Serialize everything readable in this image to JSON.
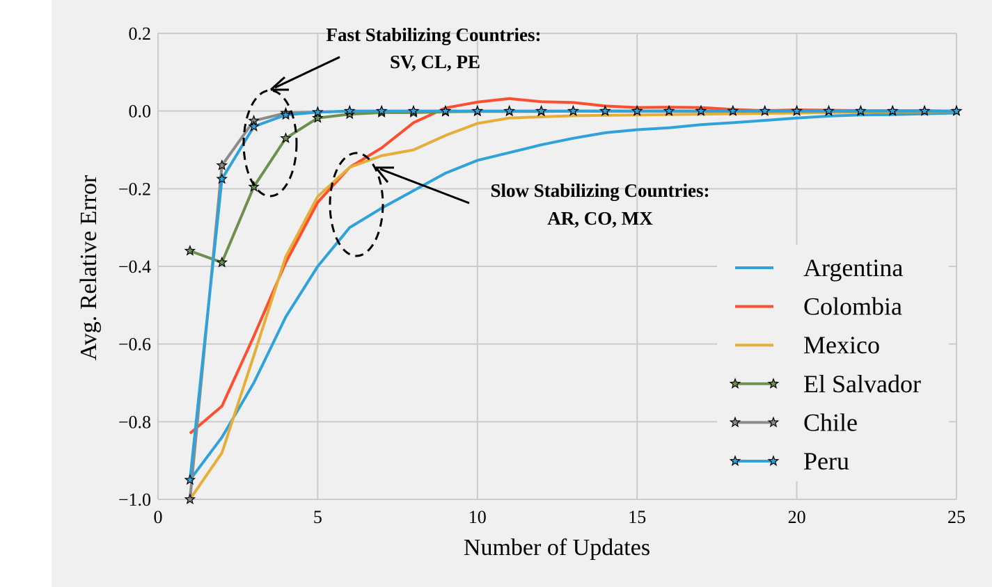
{
  "chart_data": {
    "type": "line",
    "xlabel": "Number of Updates",
    "ylabel": "Avg. Relative Error",
    "xlim": [
      0,
      25
    ],
    "ylim": [
      -1.0,
      0.2
    ],
    "xticks": [
      0,
      5,
      10,
      15,
      20,
      25
    ],
    "xtick_labels": [
      "0",
      "5",
      "10",
      "15",
      "20",
      "25"
    ],
    "yticks": [
      0.2,
      0.0,
      -0.2,
      -0.4,
      -0.6,
      -0.8,
      -1.0
    ],
    "ytick_labels": [
      "0.2",
      "0.0",
      "−0.2",
      "−0.4",
      "−0.6",
      "−0.8",
      "−1.0"
    ],
    "grid": true,
    "legend_position": "lower-right",
    "annotations": [
      {
        "line1": "Fast Stabilizing Countries:",
        "line2": "SV, CL, PE"
      },
      {
        "line1": "Slow Stabilizing Countries:",
        "line2": "AR, CO, MX"
      }
    ],
    "series": [
      {
        "name": "Argentina",
        "color": "#30a2da",
        "marker": false,
        "x": [
          1,
          2,
          3,
          4,
          5,
          6,
          7,
          8,
          9,
          10,
          11,
          12,
          13,
          14,
          15,
          16,
          17,
          18,
          19,
          20,
          21,
          22,
          23,
          24,
          25
        ],
        "y": [
          -0.95,
          -0.84,
          -0.7,
          -0.53,
          -0.4,
          -0.3,
          -0.25,
          -0.205,
          -0.16,
          -0.127,
          -0.107,
          -0.087,
          -0.07,
          -0.056,
          -0.048,
          -0.043,
          -0.035,
          -0.03,
          -0.024,
          -0.018,
          -0.013,
          -0.01,
          -0.009,
          -0.007,
          -0.005
        ]
      },
      {
        "name": "Colombia",
        "color": "#fc4f30",
        "marker": false,
        "x": [
          1,
          2,
          3,
          4,
          5,
          6,
          7,
          8,
          9,
          10,
          11,
          12,
          13,
          14,
          15,
          16,
          17,
          18,
          19,
          20,
          21,
          22,
          23,
          24,
          25
        ],
        "y": [
          -0.83,
          -0.76,
          -0.58,
          -0.39,
          -0.235,
          -0.145,
          -0.095,
          -0.03,
          0.008,
          0.023,
          0.032,
          0.024,
          0.022,
          0.013,
          0.009,
          0.01,
          0.009,
          0.004,
          0.001,
          0.003,
          0.002,
          0.001,
          0.001,
          0.001,
          0.0
        ]
      },
      {
        "name": "Mexico",
        "color": "#e5ae38",
        "marker": false,
        "x": [
          1,
          2,
          3,
          4,
          5,
          6,
          7,
          8,
          9,
          10,
          11,
          12,
          13,
          14,
          15,
          16,
          17,
          18,
          19,
          20,
          21,
          22,
          23,
          24,
          25
        ],
        "y": [
          -1.0,
          -0.88,
          -0.63,
          -0.375,
          -0.22,
          -0.145,
          -0.115,
          -0.1,
          -0.063,
          -0.032,
          -0.018,
          -0.015,
          -0.012,
          -0.011,
          -0.01,
          -0.009,
          -0.008,
          -0.007,
          -0.006,
          -0.005,
          -0.004,
          -0.003,
          -0.002,
          -0.002,
          -0.001
        ]
      },
      {
        "name": "El Salvador",
        "color": "#6d904f",
        "marker": true,
        "x": [
          1,
          2,
          3,
          4,
          5,
          6,
          7,
          8,
          9,
          10,
          11,
          12,
          13,
          14,
          15,
          16,
          17,
          18,
          19,
          20,
          21,
          22,
          23,
          24,
          25
        ],
        "y": [
          -0.36,
          -0.39,
          -0.195,
          -0.07,
          -0.018,
          -0.008,
          -0.004,
          -0.004,
          -0.002,
          -0.001,
          -0.001,
          -0.001,
          0.0,
          0.0,
          0.0,
          0.0,
          0.0,
          0.0,
          0.0,
          0.0,
          0.0,
          0.0,
          0.0,
          0.0,
          0.0
        ]
      },
      {
        "name": "Chile",
        "color": "#8b8b8b",
        "marker": true,
        "x": [
          1,
          2,
          3,
          4,
          5,
          6,
          7,
          8,
          9,
          10,
          11,
          12,
          13,
          14,
          15,
          16,
          17,
          18,
          19,
          20,
          21,
          22,
          23,
          24,
          25
        ],
        "y": [
          -1.0,
          -0.14,
          -0.025,
          -0.005,
          -0.003,
          0.0,
          0.0,
          0.0,
          0.0,
          0.0,
          0.0,
          0.0,
          0.0,
          0.0,
          0.0,
          0.0,
          0.0,
          0.0,
          0.0,
          0.0,
          0.0,
          0.0,
          0.0,
          0.0,
          0.0
        ]
      },
      {
        "name": "Peru",
        "color": "#30a2da",
        "marker": true,
        "x": [
          1,
          2,
          3,
          4,
          5,
          6,
          7,
          8,
          9,
          10,
          11,
          12,
          13,
          14,
          15,
          16,
          17,
          18,
          19,
          20,
          21,
          22,
          23,
          24,
          25
        ],
        "y": [
          -0.95,
          -0.175,
          -0.04,
          -0.01,
          -0.003,
          0.0,
          0.0,
          0.0,
          0.0,
          0.0,
          0.0,
          0.0,
          0.0,
          0.0,
          0.0,
          0.0,
          0.0,
          0.0,
          0.0,
          0.0,
          0.0,
          0.0,
          0.0,
          0.0,
          0.0
        ]
      }
    ]
  }
}
